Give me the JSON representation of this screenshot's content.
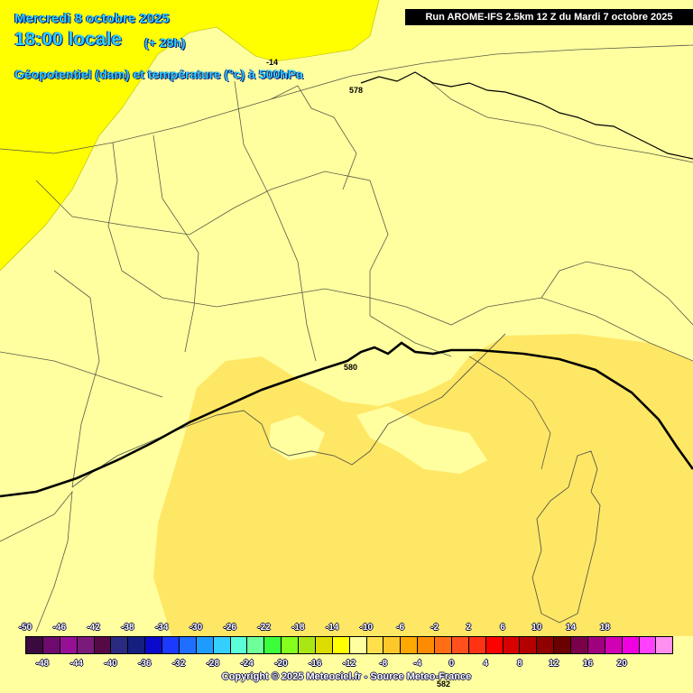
{
  "header": {
    "date": "Mercredi 8 octobre 2025",
    "time": "18:00 locale",
    "lead": "(+ 28h)",
    "parameter": "Géopotentiel (dam) et température (°c) à 500hPa",
    "run": "Run AROME-IFS 2.5km 12 Z du Mardi 7 octobre 2025"
  },
  "map_labels": {
    "temp_isotherm": "-14",
    "geopot_578": "578",
    "geopot_580": "580",
    "geopot_582": "582"
  },
  "colors": {
    "zone_minus14": "#ffff00",
    "zone_minus12": "#ffffa0",
    "zone_minus10": "#ffe766",
    "contour": "#000000",
    "borders": "#5a5a46"
  },
  "legend": {
    "top_values": [
      "-50",
      "-46",
      "-42",
      "-38",
      "-34",
      "-30",
      "-26",
      "-22",
      "-18",
      "-14",
      "-10",
      "-6",
      "-2",
      "2",
      "6",
      "10",
      "14",
      "18"
    ],
    "bottom_values": [
      "-48",
      "-44",
      "-40",
      "-36",
      "-32",
      "-28",
      "-24",
      "-20",
      "-16",
      "-12",
      "-8",
      "-4",
      "0",
      "4",
      "8",
      "12",
      "16",
      "20"
    ],
    "swatches": [
      "#3a0a3e",
      "#6e0a6e",
      "#961096",
      "#7a1a7a",
      "#550a45",
      "#2a2a80",
      "#14207f",
      "#0a0acc",
      "#1a3aff",
      "#1e6eff",
      "#1e9bff",
      "#34cfff",
      "#5affd8",
      "#6eff9a",
      "#3cff3c",
      "#84ff1e",
      "#a8e614",
      "#dcdc00",
      "#ffff00",
      "#ffffa0",
      "#ffe04a",
      "#ffc82a",
      "#ffa800",
      "#ff8c00",
      "#ff6e14",
      "#ff501e",
      "#ff3214",
      "#ff0000",
      "#d80000",
      "#b40000",
      "#900000",
      "#6a0000",
      "#7a004a",
      "#a0007e",
      "#d000b4",
      "#f000e0",
      "#ff40ff",
      "#ff90f0"
    ]
  },
  "copyright": "Copyright © 2025 Meteociel.fr - Source Meteo-France"
}
